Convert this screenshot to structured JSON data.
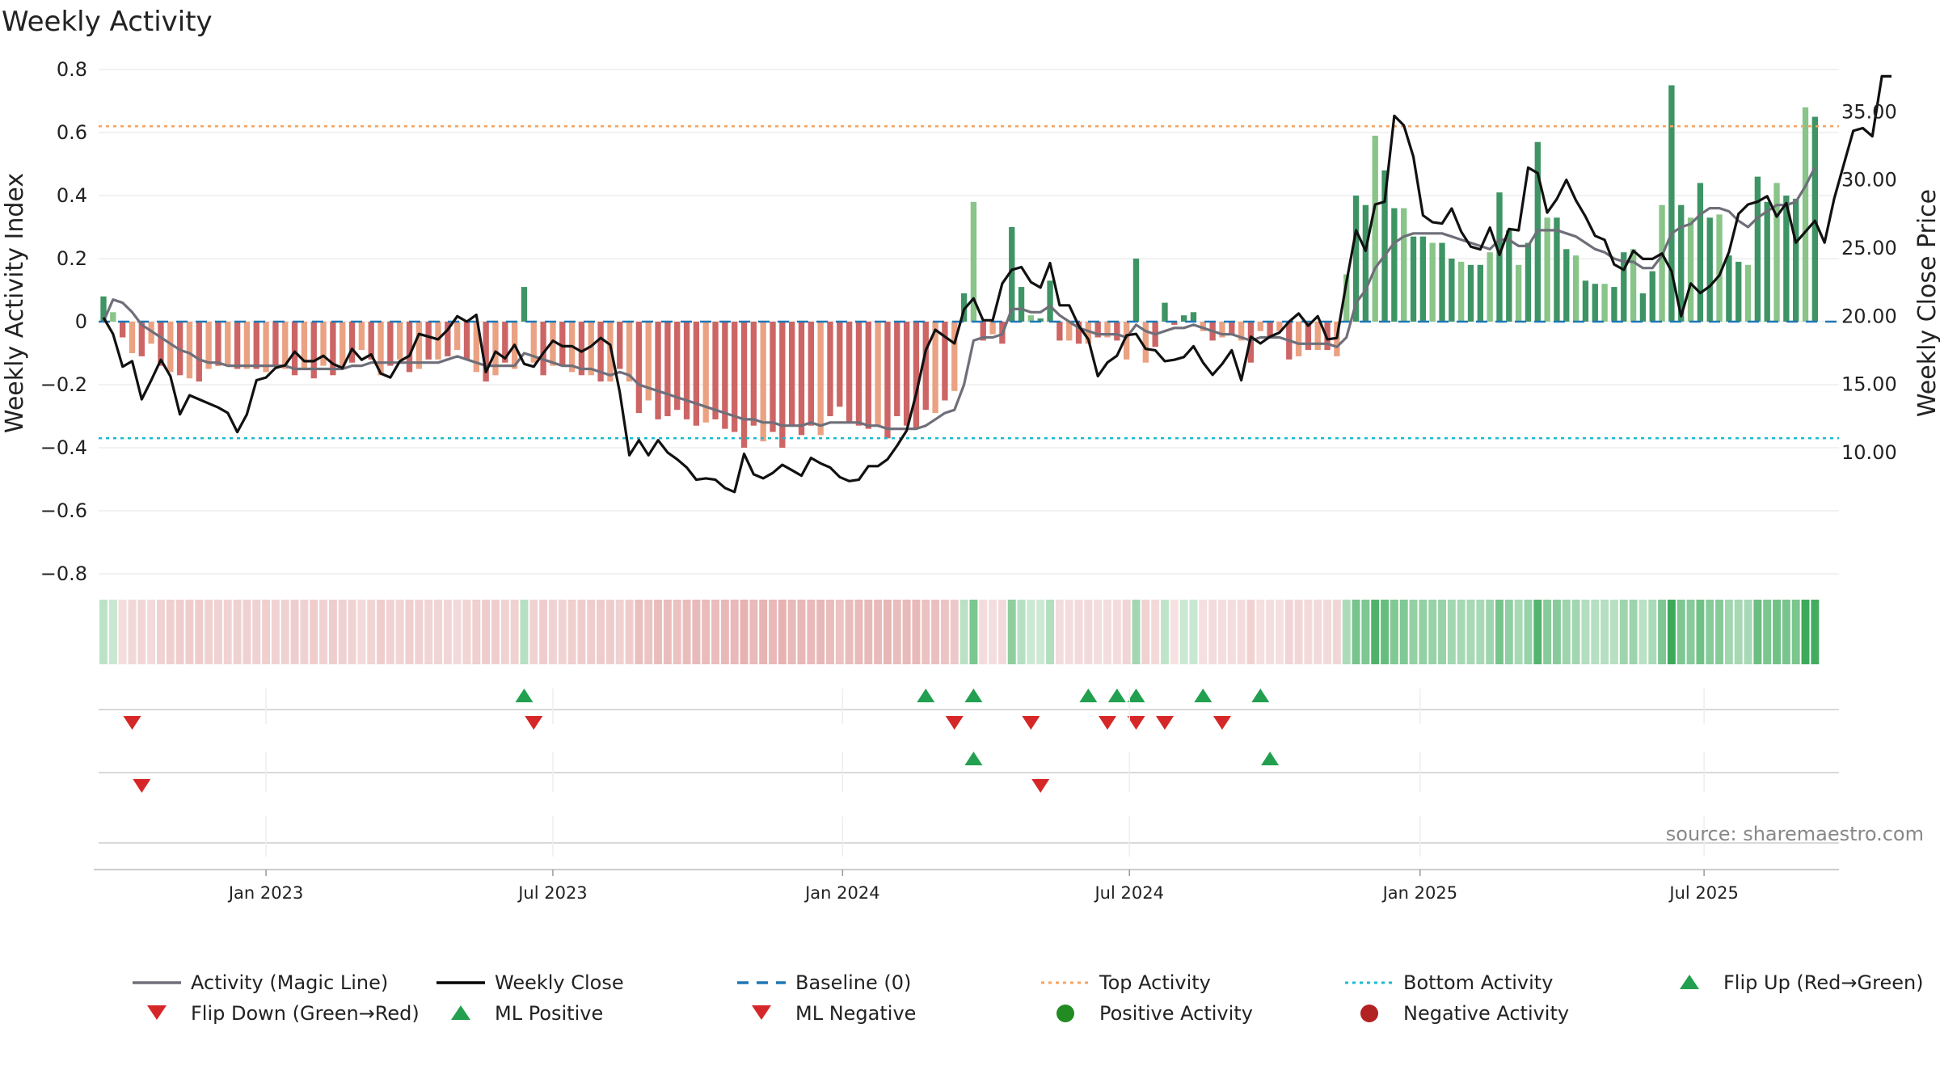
{
  "chart_data": {
    "type": "bar",
    "title": "Weekly Activity",
    "ylabel_left": "Weekly Activity Index",
    "ylabel_right": "Weekly Close Price",
    "ylim_left": [
      -0.8,
      0.8
    ],
    "yticks_left": [
      0.8,
      0.6,
      0.4,
      0.2,
      0,
      -0.2,
      -0.4,
      -0.6,
      -0.8
    ],
    "ytick_labels_left": [
      "0.8",
      "0.6",
      "0.4",
      "0.2",
      "0",
      "−0.2",
      "−0.4",
      "−0.6",
      "−0.8"
    ],
    "ylim_right": [
      1.1,
      38.1
    ],
    "yticks_right": [
      35,
      30,
      25,
      20,
      15,
      10
    ],
    "ytick_labels_right": [
      "35.00",
      "30.00",
      "25.00",
      "20.00",
      "15.00",
      "10.00"
    ],
    "x_start_week": 0,
    "x_end_week": 181,
    "x_ticks": [
      {
        "label": "Jan 2023",
        "week": 17
      },
      {
        "label": "Jul 2023",
        "week": 47
      },
      {
        "label": "Jan 2024",
        "week": 77.3
      },
      {
        "label": "Jul 2024",
        "week": 107.3
      },
      {
        "label": "Jan 2025",
        "week": 137.7
      },
      {
        "label": "Jul 2025",
        "week": 167.4
      }
    ],
    "top_activity": 0.62,
    "bottom_activity": -0.37,
    "baseline": 0,
    "series": [
      {
        "name": "Weekly Activity",
        "values": [
          0.08,
          0.03,
          -0.05,
          -0.1,
          -0.11,
          -0.07,
          -0.14,
          -0.16,
          -0.17,
          -0.18,
          -0.19,
          -0.15,
          -0.14,
          -0.14,
          -0.15,
          -0.15,
          -0.15,
          -0.16,
          -0.14,
          -0.15,
          -0.17,
          -0.15,
          -0.18,
          -0.14,
          -0.17,
          -0.15,
          -0.13,
          -0.09,
          -0.12,
          -0.17,
          -0.14,
          -0.12,
          -0.16,
          -0.15,
          -0.12,
          -0.12,
          -0.11,
          -0.09,
          -0.12,
          -0.16,
          -0.19,
          -0.17,
          -0.13,
          -0.15,
          0.11,
          -0.13,
          -0.17,
          -0.14,
          -0.14,
          -0.16,
          -0.17,
          -0.17,
          -0.19,
          -0.19,
          -0.15,
          -0.19,
          -0.29,
          -0.25,
          -0.31,
          -0.3,
          -0.28,
          -0.31,
          -0.33,
          -0.32,
          -0.31,
          -0.34,
          -0.35,
          -0.4,
          -0.33,
          -0.38,
          -0.35,
          -0.4,
          -0.33,
          -0.36,
          -0.33,
          -0.36,
          -0.3,
          -0.27,
          -0.32,
          -0.33,
          -0.34,
          -0.33,
          -0.37,
          -0.3,
          -0.33,
          -0.34,
          -0.28,
          -0.29,
          -0.25,
          -0.22,
          0.09,
          0.38,
          -0.06,
          -0.04,
          -0.07,
          0.3,
          0.11,
          0.02,
          0.01,
          0.13,
          -0.06,
          -0.06,
          -0.07,
          -0.07,
          -0.05,
          -0.05,
          -0.06,
          -0.12,
          0.2,
          -0.13,
          -0.08,
          0.06,
          -0.01,
          0.02,
          0.03,
          -0.03,
          -0.06,
          -0.05,
          -0.04,
          -0.06,
          -0.13,
          -0.03,
          -0.05,
          -0.03,
          -0.12,
          -0.11,
          -0.09,
          -0.09,
          -0.09,
          -0.11,
          0.15,
          0.4,
          0.37,
          0.59,
          0.48,
          0.36,
          0.36,
          0.27,
          0.27,
          0.25,
          0.25,
          0.2,
          0.19,
          0.18,
          0.18,
          0.22,
          0.41,
          0.29,
          0.18,
          0.25,
          0.57,
          0.33,
          0.33,
          0.23,
          0.21,
          0.13,
          0.12,
          0.12,
          0.11,
          0.22,
          0.23,
          0.09,
          0.16,
          0.37,
          0.75,
          0.37,
          0.33,
          0.44,
          0.33,
          0.34,
          0.21,
          0.19,
          0.18,
          0.46,
          0.38,
          0.44,
          0.4,
          0.39,
          0.68,
          0.65
        ]
      },
      {
        "name": "Activity (Magic Line)",
        "values": [
          0.0,
          0.07,
          0.06,
          0.03,
          -0.01,
          -0.03,
          -0.05,
          -0.07,
          -0.09,
          -0.1,
          -0.12,
          -0.13,
          -0.13,
          -0.14,
          -0.14,
          -0.14,
          -0.14,
          -0.14,
          -0.14,
          -0.14,
          -0.15,
          -0.15,
          -0.15,
          -0.15,
          -0.15,
          -0.15,
          -0.14,
          -0.14,
          -0.13,
          -0.13,
          -0.13,
          -0.13,
          -0.13,
          -0.13,
          -0.13,
          -0.13,
          -0.12,
          -0.11,
          -0.12,
          -0.13,
          -0.14,
          -0.14,
          -0.14,
          -0.14,
          -0.1,
          -0.11,
          -0.12,
          -0.13,
          -0.14,
          -0.14,
          -0.15,
          -0.15,
          -0.16,
          -0.17,
          -0.16,
          -0.17,
          -0.2,
          -0.21,
          -0.22,
          -0.23,
          -0.24,
          -0.25,
          -0.26,
          -0.27,
          -0.28,
          -0.29,
          -0.3,
          -0.31,
          -0.31,
          -0.32,
          -0.32,
          -0.33,
          -0.33,
          -0.33,
          -0.32,
          -0.33,
          -0.32,
          -0.32,
          -0.32,
          -0.32,
          -0.33,
          -0.33,
          -0.34,
          -0.34,
          -0.34,
          -0.34,
          -0.33,
          -0.31,
          -0.29,
          -0.28,
          -0.2,
          -0.06,
          -0.05,
          -0.05,
          -0.04,
          0.04,
          0.04,
          0.03,
          0.03,
          0.05,
          0.02,
          0.0,
          -0.02,
          -0.03,
          -0.04,
          -0.04,
          -0.04,
          -0.05,
          -0.01,
          -0.03,
          -0.04,
          -0.03,
          -0.02,
          -0.02,
          -0.01,
          -0.02,
          -0.03,
          -0.04,
          -0.04,
          -0.05,
          -0.06,
          -0.05,
          -0.05,
          -0.05,
          -0.06,
          -0.07,
          -0.07,
          -0.07,
          -0.07,
          -0.08,
          -0.05,
          0.06,
          0.1,
          0.17,
          0.21,
          0.25,
          0.27,
          0.28,
          0.28,
          0.28,
          0.28,
          0.27,
          0.26,
          0.25,
          0.24,
          0.23,
          0.26,
          0.26,
          0.24,
          0.24,
          0.29,
          0.29,
          0.29,
          0.28,
          0.27,
          0.25,
          0.23,
          0.22,
          0.2,
          0.19,
          0.19,
          0.17,
          0.17,
          0.21,
          0.28,
          0.3,
          0.31,
          0.34,
          0.36,
          0.36,
          0.35,
          0.32,
          0.3,
          0.33,
          0.35,
          0.37,
          0.37,
          0.38,
          0.43,
          0.49
        ]
      },
      {
        "name": "Weekly Close",
        "values": [
          19.9,
          18.7,
          16.3,
          16.7,
          13.9,
          15.3,
          16.8,
          15.6,
          12.8,
          14.2,
          13.9,
          13.6,
          13.3,
          12.9,
          11.5,
          12.8,
          15.3,
          15.5,
          16.2,
          16.4,
          17.4,
          16.7,
          16.7,
          17.1,
          16.5,
          16.2,
          17.6,
          16.8,
          17.2,
          15.8,
          15.5,
          16.7,
          17.1,
          18.7,
          18.5,
          18.3,
          19.0,
          20.0,
          19.6,
          20.1,
          15.9,
          17.4,
          16.9,
          17.9,
          16.5,
          16.3,
          17.3,
          18.2,
          17.8,
          17.8,
          17.4,
          17.8,
          18.4,
          17.9,
          14.4,
          9.8,
          10.9,
          9.8,
          10.9,
          10.0,
          9.5,
          8.9,
          8.0,
          8.1,
          8.0,
          7.4,
          7.1,
          9.9,
          8.4,
          8.1,
          8.5,
          9.1,
          8.7,
          8.3,
          9.6,
          9.2,
          8.9,
          8.2,
          7.9,
          8.0,
          9.0,
          9.0,
          9.5,
          10.5,
          11.6,
          14.3,
          17.5,
          19.0,
          18.5,
          18.0,
          20.5,
          21.3,
          19.7,
          19.7,
          22.4,
          23.4,
          23.6,
          22.5,
          22.1,
          23.9,
          20.8,
          20.8,
          19.3,
          18.3,
          15.6,
          16.6,
          17.1,
          18.6,
          18.7,
          17.6,
          17.5,
          16.7,
          16.8,
          17.0,
          17.8,
          16.6,
          15.7,
          16.5,
          17.5,
          15.3,
          18.5,
          18.0,
          18.5,
          18.8,
          19.6,
          20.2,
          19.3,
          20.0,
          18.3,
          18.4,
          22.5,
          26.3,
          24.8,
          28.2,
          28.4,
          34.7,
          34.0,
          31.7,
          27.4,
          26.9,
          26.8,
          27.9,
          26.2,
          25.1,
          24.9,
          26.5,
          24.5,
          26.4,
          26.3,
          30.9,
          30.5,
          27.6,
          28.6,
          30.0,
          28.5,
          27.3,
          25.9,
          25.6,
          23.8,
          23.4,
          24.8,
          24.2,
          24.2,
          24.6,
          23.3,
          20.0,
          22.4,
          21.7,
          22.2,
          23.0,
          24.7,
          27.5,
          28.2,
          28.4,
          28.8,
          27.3,
          28.3,
          25.4,
          26.2,
          27.0,
          25.4,
          28.6,
          31.1,
          33.6,
          33.8,
          33.2,
          37.6,
          37.6
        ]
      }
    ],
    "legend": [
      {
        "label": "Activity (Magic Line)",
        "marker": "line",
        "color": "#6f6f7a"
      },
      {
        "label": "Weekly Close",
        "marker": "line",
        "color": "#000000"
      },
      {
        "label": "Baseline (0)",
        "marker": "dashed-line",
        "color": "#1f77b4"
      },
      {
        "label": "Top Activity",
        "marker": "dotted-line",
        "color": "#f4a460"
      },
      {
        "label": "Bottom Activity",
        "marker": "dotted-line",
        "color": "#17becf"
      },
      {
        "label": "Flip Up (Red→Green)",
        "marker": "triangle-up",
        "color": "#2ca02c"
      },
      {
        "label": "Flip Down (Green→Red)",
        "marker": "triangle-down",
        "color": "#d62728"
      },
      {
        "label": "ML Positive",
        "marker": "triangle-up",
        "color": "#2ca02c"
      },
      {
        "label": "ML Negative",
        "marker": "triangle-down",
        "color": "#d62728"
      },
      {
        "label": "Positive Activity",
        "marker": "circle",
        "color": "#228b22"
      },
      {
        "label": "Negative Activity",
        "marker": "circle",
        "color": "#b22222"
      }
    ],
    "flip_up_weeks": [
      44,
      86,
      91,
      103,
      106,
      108,
      115,
      121
    ],
    "flip_down_weeks": [
      3,
      45,
      89,
      97,
      105,
      108,
      111,
      117
    ],
    "ml_positive_weeks": [
      91,
      122
    ],
    "ml_negative_weeks": [
      4,
      98
    ],
    "source": "source: sharemaestro.com",
    "colors": {
      "pos_dark": "#2e8b57",
      "pos_light": "#7fbf7f",
      "neg_dark": "#c95858",
      "neg_light": "#e89a78",
      "magic_line": "#6f6f7a",
      "close_line": "#111111",
      "baseline": "#1f77b4",
      "top": "#f4a460",
      "bottom": "#17becf",
      "up_marker": "#22a050",
      "down_marker": "#d62728"
    }
  }
}
